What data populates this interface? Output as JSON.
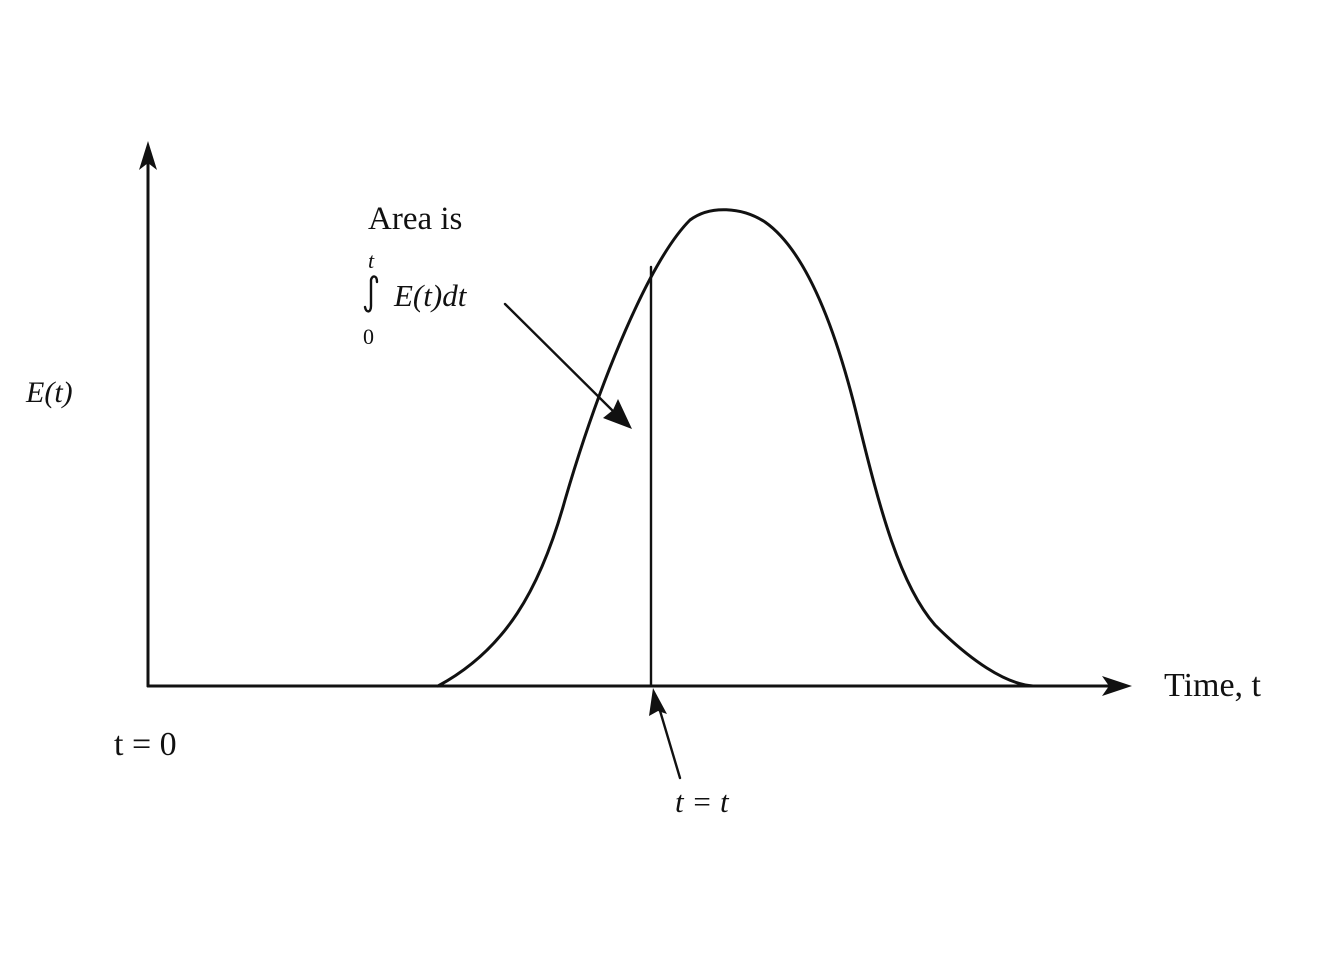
{
  "diagram": {
    "y_axis_label": "E(t)",
    "x_axis_label": "Time, t",
    "origin_label": "t = 0",
    "marker_label": "t = t",
    "area_annotation": {
      "title": "Area is",
      "integral_upper": "t",
      "integral_lower": "0",
      "integrand": "E(t)dt"
    },
    "stroke_color": "#111111",
    "background_color": "#ffffff"
  }
}
